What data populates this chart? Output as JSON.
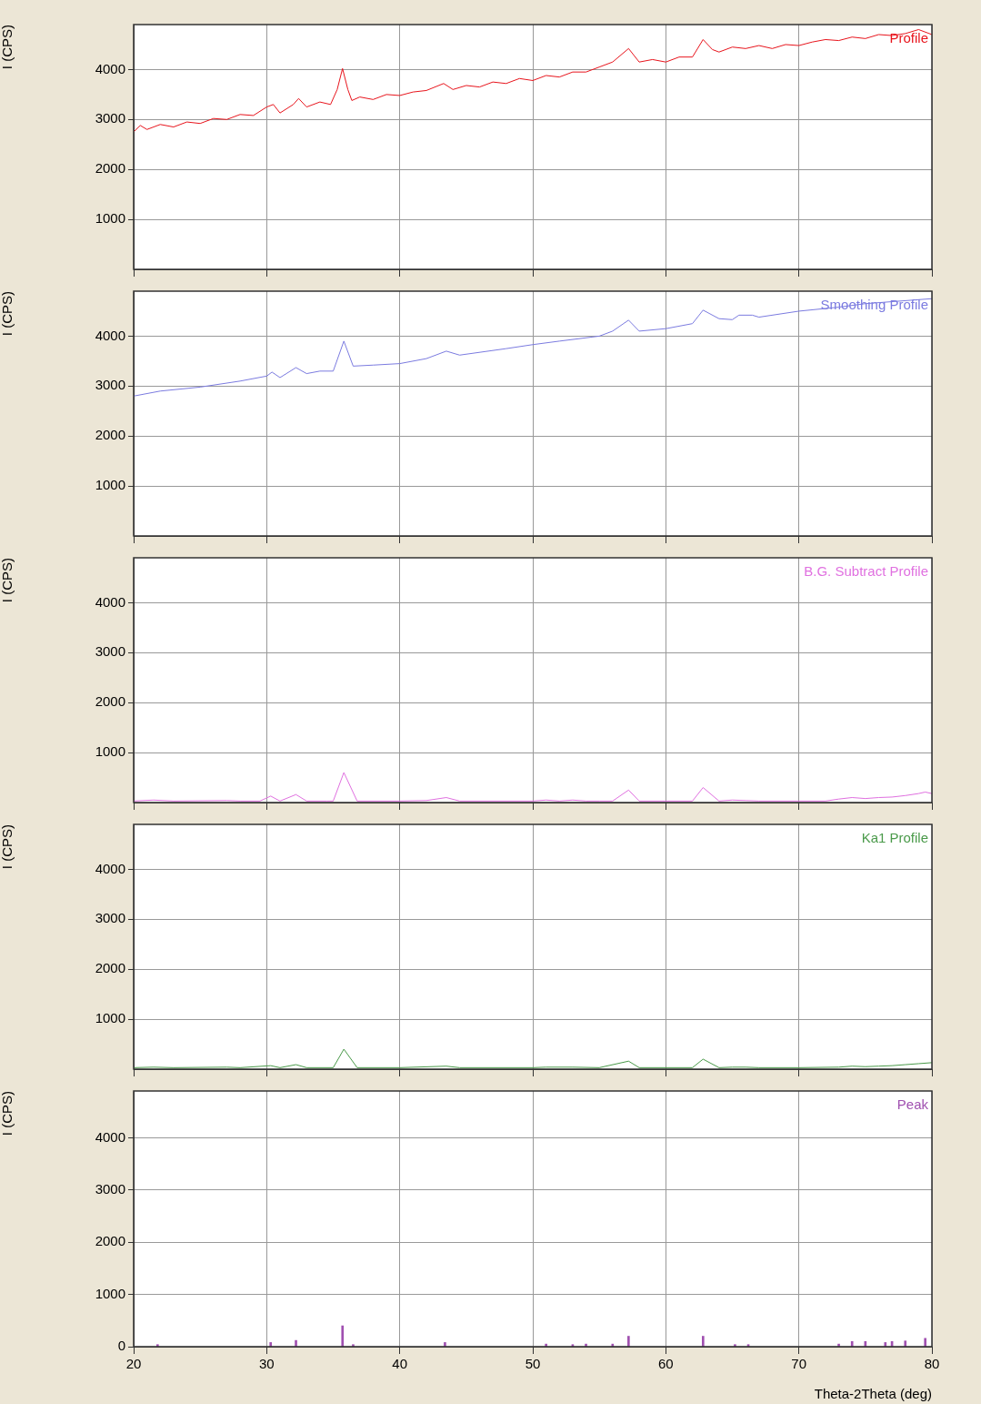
{
  "chart_data": [
    {
      "type": "line",
      "ylabel": "I (CPS)",
      "xlim": [
        20,
        80
      ],
      "xticks": [
        20,
        30,
        40,
        50,
        60,
        70,
        80
      ],
      "ylim": [
        0,
        4900
      ],
      "yticks": [
        1000,
        2000,
        3000,
        4000
      ],
      "grid": true,
      "tick_labels": "y",
      "series": [
        {
          "name": "Profile",
          "color": "#e8141c",
          "x": [
            20,
            20.5,
            21,
            22,
            23,
            24,
            25,
            26,
            27,
            28,
            29,
            30,
            30.5,
            31,
            32,
            32.4,
            33,
            34,
            34.8,
            35.3,
            35.7,
            36.1,
            36.4,
            37,
            38,
            39,
            40,
            41,
            42,
            43.3,
            44,
            45,
            46,
            47,
            48,
            49,
            50,
            51,
            52,
            53,
            54,
            55,
            56,
            57.2,
            58,
            59,
            60,
            61,
            62,
            62.8,
            63.5,
            64,
            65,
            66,
            67,
            68,
            69,
            70,
            71,
            72,
            73,
            74,
            75,
            76,
            77,
            78,
            79,
            80
          ],
          "values": [
            2750,
            2880,
            2800,
            2900,
            2850,
            2950,
            2920,
            3020,
            3000,
            3100,
            3080,
            3250,
            3300,
            3130,
            3300,
            3420,
            3250,
            3350,
            3300,
            3600,
            4020,
            3600,
            3380,
            3450,
            3400,
            3500,
            3480,
            3550,
            3580,
            3720,
            3600,
            3680,
            3650,
            3750,
            3720,
            3820,
            3780,
            3880,
            3850,
            3950,
            3950,
            4050,
            4150,
            4420,
            4150,
            4200,
            4150,
            4250,
            4250,
            4600,
            4400,
            4350,
            4450,
            4420,
            4480,
            4420,
            4500,
            4480,
            4550,
            4600,
            4580,
            4650,
            4620,
            4700,
            4680,
            4720,
            4800,
            4700
          ]
        }
      ]
    },
    {
      "type": "line",
      "ylabel": "I (CPS)",
      "xlim": [
        20,
        80
      ],
      "xticks": [
        20,
        30,
        40,
        50,
        60,
        70,
        80
      ],
      "ylim": [
        0,
        4900
      ],
      "yticks": [
        1000,
        2000,
        3000,
        4000
      ],
      "grid": true,
      "tick_labels": "y",
      "series": [
        {
          "name": "Smoothing Profile",
          "color": "#7b7be0",
          "x": [
            20,
            22,
            25,
            28,
            30,
            30.4,
            31,
            32.2,
            33,
            34,
            35,
            35.8,
            36.5,
            38,
            40,
            42,
            43.5,
            44.5,
            48,
            50,
            52,
            55,
            56,
            57.2,
            58,
            60,
            62,
            62.8,
            64,
            65,
            65.5,
            66.5,
            67,
            70,
            73,
            75,
            80
          ],
          "values": [
            2800,
            2900,
            2980,
            3100,
            3200,
            3280,
            3170,
            3370,
            3250,
            3300,
            3300,
            3900,
            3400,
            3420,
            3450,
            3550,
            3700,
            3620,
            3750,
            3830,
            3900,
            4000,
            4100,
            4320,
            4100,
            4150,
            4250,
            4520,
            4350,
            4330,
            4420,
            4420,
            4380,
            4500,
            4580,
            4650,
            4750
          ]
        }
      ]
    },
    {
      "type": "line",
      "ylabel": "I (CPS)",
      "xlim": [
        20,
        80
      ],
      "xticks": [
        20,
        30,
        40,
        50,
        60,
        70,
        80
      ],
      "ylim": [
        0,
        4900
      ],
      "yticks": [
        1000,
        2000,
        3000,
        4000
      ],
      "grid": true,
      "tick_labels": "y",
      "series": [
        {
          "name": "B.G. Subtract Profile",
          "color": "#e070e0",
          "x": [
            20,
            21.5,
            23,
            27,
            28,
            29.5,
            30.3,
            31,
            32.2,
            33,
            34.5,
            35,
            35.8,
            36.8,
            40,
            42,
            43.5,
            44.5,
            50,
            51,
            52,
            53,
            54,
            55,
            56,
            57.2,
            58,
            62,
            62.8,
            64,
            65,
            66,
            67,
            70,
            72,
            73,
            74,
            75,
            76,
            77,
            78,
            79,
            79.5,
            80
          ],
          "values": [
            30,
            50,
            30,
            40,
            30,
            30,
            130,
            30,
            160,
            30,
            30,
            30,
            600,
            30,
            30,
            40,
            100,
            30,
            30,
            50,
            30,
            50,
            30,
            30,
            30,
            250,
            30,
            30,
            300,
            30,
            50,
            40,
            30,
            30,
            30,
            70,
            100,
            80,
            100,
            110,
            140,
            180,
            210,
            180
          ]
        }
      ]
    },
    {
      "type": "line",
      "ylabel": "I (CPS)",
      "xlim": [
        20,
        80
      ],
      "xticks": [
        20,
        30,
        40,
        50,
        60,
        70,
        80
      ],
      "ylim": [
        0,
        4900
      ],
      "yticks": [
        1000,
        2000,
        3000,
        4000
      ],
      "grid": true,
      "tick_labels": "y",
      "series": [
        {
          "name": "Ka1 Profile",
          "color": "#4a9a4a",
          "x": [
            20,
            21.5,
            23,
            27,
            28,
            30.3,
            31,
            32.2,
            33,
            35,
            35.8,
            36.8,
            40,
            43.5,
            44.5,
            50,
            51,
            53,
            55,
            57.2,
            58,
            62,
            62.8,
            64,
            65,
            66,
            67,
            70,
            73,
            74,
            75,
            76,
            77,
            78,
            79,
            80
          ],
          "values": [
            30,
            40,
            30,
            40,
            30,
            70,
            30,
            90,
            30,
            30,
            400,
            30,
            30,
            60,
            30,
            30,
            40,
            40,
            30,
            160,
            30,
            30,
            200,
            30,
            40,
            40,
            30,
            30,
            40,
            60,
            50,
            60,
            70,
            90,
            110,
            130
          ]
        }
      ]
    },
    {
      "type": "bar",
      "ylabel": "I (CPS)",
      "xlabel": "Theta-2Theta (deg)",
      "xlim": [
        20,
        80
      ],
      "xticks": [
        20,
        30,
        40,
        50,
        60,
        70,
        80
      ],
      "ylim": [
        0,
        4900
      ],
      "yticks": [
        0,
        1000,
        2000,
        3000,
        4000
      ],
      "grid": true,
      "series": [
        {
          "name": "Peak",
          "color": "#a050b0",
          "x": [
            21.8,
            30.3,
            32.2,
            35.7,
            36.5,
            43.4,
            51,
            53,
            54,
            56,
            57.2,
            62.8,
            65.2,
            66.2,
            73,
            74,
            75,
            76.5,
            77,
            78,
            79.5
          ],
          "values": [
            40,
            80,
            120,
            400,
            40,
            80,
            50,
            40,
            50,
            50,
            200,
            200,
            40,
            40,
            50,
            100,
            100,
            80,
            100,
            110,
            160
          ]
        }
      ]
    }
  ]
}
